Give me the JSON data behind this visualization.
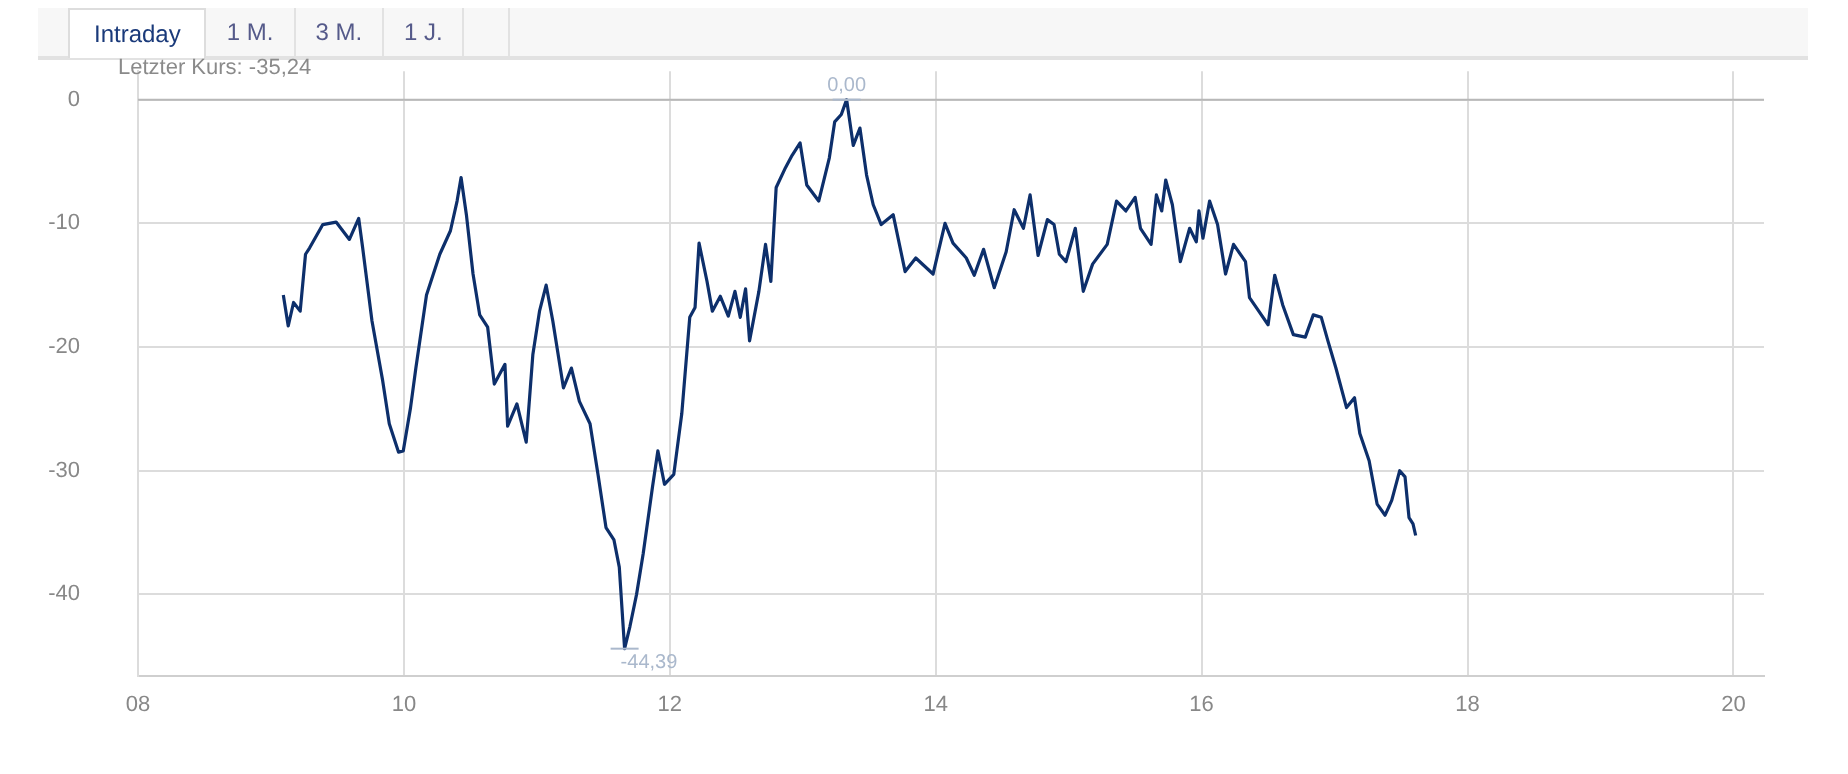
{
  "chart_data": {
    "type": "line",
    "x": [
      9.093,
      9.13,
      9.17,
      9.22,
      9.26,
      9.29,
      9.39,
      9.49,
      9.59,
      9.66,
      9.69,
      9.76,
      9.84,
      9.89,
      9.96,
      9.995,
      10.05,
      10.09,
      10.17,
      10.27,
      10.35,
      10.4,
      10.43,
      10.47,
      10.52,
      10.57,
      10.63,
      10.68,
      10.76,
      10.78,
      10.85,
      10.92,
      10.97,
      11.02,
      11.07,
      11.12,
      11.2,
      11.26,
      11.32,
      11.4,
      11.46,
      11.52,
      11.58,
      11.62,
      11.66,
      11.7,
      11.75,
      11.8,
      11.87,
      11.91,
      11.96,
      12.03,
      12.09,
      12.15,
      12.19,
      12.22,
      12.28,
      12.32,
      12.38,
      12.44,
      12.49,
      12.53,
      12.57,
      12.6,
      12.67,
      12.72,
      12.76,
      12.8,
      12.87,
      12.92,
      12.98,
      13.03,
      13.12,
      13.2,
      13.24,
      13.29,
      13.33,
      13.38,
      13.43,
      13.48,
      13.53,
      13.59,
      13.68,
      13.77,
      13.85,
      13.98,
      14.07,
      14.13,
      14.23,
      14.29,
      14.36,
      14.44,
      14.53,
      14.59,
      14.66,
      14.71,
      14.77,
      14.84,
      14.89,
      14.93,
      14.98,
      15.05,
      15.11,
      15.18,
      15.29,
      15.36,
      15.43,
      15.5,
      15.54,
      15.62,
      15.66,
      15.7,
      15.73,
      15.78,
      15.84,
      15.91,
      15.96,
      15.98,
      16.01,
      16.06,
      16.12,
      16.18,
      16.24,
      16.33,
      16.36,
      16.43,
      16.5,
      16.55,
      16.61,
      16.69,
      16.78,
      16.84,
      16.9,
      16.95,
      17.01,
      17.09,
      17.15,
      17.19,
      17.26,
      17.32,
      17.38,
      17.43,
      17.49,
      17.53,
      17.56,
      17.59,
      17.61
    ],
    "series": [
      {
        "color": "#0d2f6b",
        "values": [
          -15.8,
          -18.3,
          -16.4,
          -17.1,
          -12.5,
          -12.0,
          -10.1,
          -9.9,
          -11.3,
          -9.6,
          -12.0,
          -17.9,
          -22.7,
          -26.2,
          -28.5,
          -28.4,
          -24.9,
          -21.7,
          -15.8,
          -12.5,
          -10.6,
          -8.2,
          -6.3,
          -9.3,
          -14.1,
          -17.4,
          -18.4,
          -23.0,
          -21.4,
          -26.4,
          -24.6,
          -27.7,
          -20.6,
          -17.1,
          -15.0,
          -17.9,
          -23.3,
          -21.7,
          -24.4,
          -26.2,
          -30.3,
          -34.6,
          -35.6,
          -37.8,
          -44.39,
          -42.6,
          -40.0,
          -36.7,
          -31.3,
          -28.4,
          -31.1,
          -30.3,
          -25.4,
          -17.6,
          -16.8,
          -11.6,
          -14.7,
          -17.1,
          -15.9,
          -17.5,
          -15.5,
          -17.6,
          -15.3,
          -19.5,
          -15.5,
          -11.7,
          -14.7,
          -7.1,
          -5.5,
          -4.5,
          -3.5,
          -6.9,
          -8.2,
          -4.7,
          -1.8,
          -1.2,
          0.0,
          -3.7,
          -2.3,
          -6.1,
          -8.5,
          -10.1,
          -9.3,
          -13.9,
          -12.8,
          -14.1,
          -10.0,
          -11.6,
          -12.8,
          -14.2,
          -12.1,
          -15.2,
          -12.3,
          -8.9,
          -10.4,
          -7.7,
          -12.6,
          -9.7,
          -10.1,
          -12.5,
          -13.1,
          -10.4,
          -15.5,
          -13.3,
          -11.7,
          -8.2,
          -9.0,
          -7.9,
          -10.4,
          -11.7,
          -7.7,
          -9.0,
          -6.5,
          -8.5,
          -13.1,
          -10.4,
          -11.5,
          -9.0,
          -11.2,
          -8.2,
          -10.1,
          -14.1,
          -11.7,
          -13.1,
          -16.0,
          -17.1,
          -18.2,
          -14.2,
          -16.6,
          -19.0,
          -19.2,
          -17.4,
          -17.6,
          -19.5,
          -21.7,
          -24.9,
          -24.1,
          -27.0,
          -29.2,
          -32.7,
          -33.6,
          -32.4,
          -30.0,
          -30.5,
          -33.8,
          -34.3,
          -35.24
        ]
      }
    ],
    "xlim": [
      8,
      20.23
    ],
    "xticks": [
      {
        "value": 8,
        "label": "08"
      },
      {
        "value": 10,
        "label": "10"
      },
      {
        "value": 12,
        "label": "12"
      },
      {
        "value": 14,
        "label": "14"
      },
      {
        "value": 16,
        "label": "16"
      },
      {
        "value": 18,
        "label": "18"
      },
      {
        "value": 20,
        "label": "20"
      }
    ],
    "ylim": [
      -46.6,
      2.3
    ],
    "yticks": [
      -40,
      -30,
      -20,
      -10,
      0
    ],
    "grid": true,
    "legend": false,
    "marker": "none",
    "line_style": "solid",
    "ref_lines": [
      {
        "axis": "y",
        "value": 0,
        "color": "#b8b8b8"
      }
    ],
    "annotations": [
      "Intraday",
      "1 M.",
      "3 M.",
      "1 J.",
      "Letzter Kurs: -35,24",
      {
        "text": "0,00",
        "x": 13.33,
        "y": 0
      },
      {
        "text": "-44,39",
        "x": 11.66,
        "y": -44.39
      }
    ]
  }
}
